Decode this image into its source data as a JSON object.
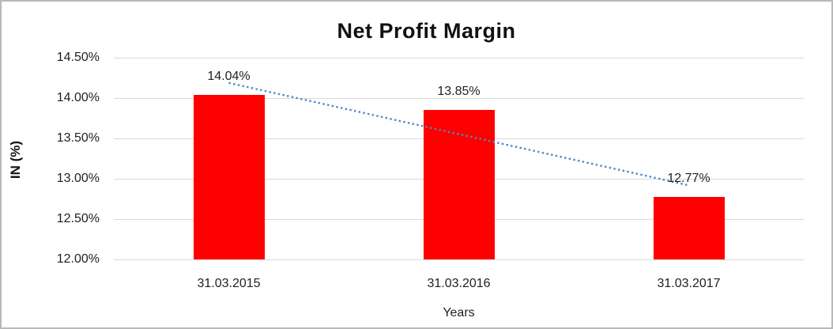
{
  "chart_data": {
    "type": "bar",
    "title": "Net Profit Margin",
    "xlabel": "Years",
    "ylabel": "IN (%)",
    "categories": [
      "31.03.2015",
      "31.03.2016",
      "31.03.2017"
    ],
    "values": [
      14.04,
      13.85,
      12.77
    ],
    "data_labels": [
      "14.04%",
      "13.85%",
      "12.77%"
    ],
    "ylim": [
      12.0,
      14.5
    ],
    "yticks": [
      {
        "value": 14.5,
        "label": "14.50%"
      },
      {
        "value": 14.0,
        "label": "14.00%"
      },
      {
        "value": 13.5,
        "label": "13.50%"
      },
      {
        "value": 13.0,
        "label": "13.00%"
      },
      {
        "value": 12.5,
        "label": "12.50%"
      },
      {
        "value": 12.0,
        "label": "12.00%"
      }
    ],
    "grid": true,
    "legend": "none",
    "bar_color": "#ff0000",
    "trendline": {
      "type": "linear",
      "style": "dotted",
      "color": "#4e87c8"
    },
    "colors": {
      "gridline": "#d9d9d9",
      "text": "#1f1f1f",
      "title_text": "#111111",
      "frame_border": "#b9b9b9",
      "background": "#ffffff"
    }
  }
}
